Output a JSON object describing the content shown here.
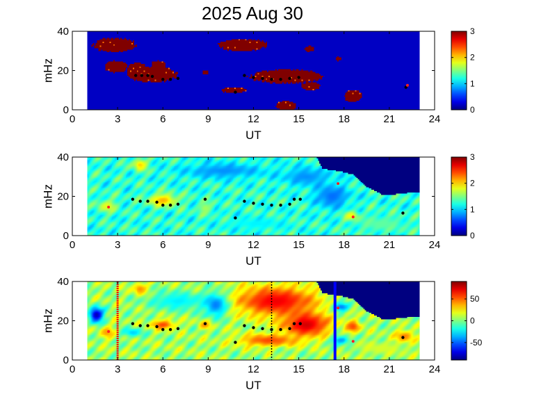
{
  "figure": {
    "title": "2025 Aug 30"
  },
  "chart_data": [
    {
      "type": "heatmap",
      "panel": "top",
      "xlabel": "UT",
      "ylabel": "mHz",
      "xlim": [
        0,
        24
      ],
      "ylim": [
        0,
        40
      ],
      "xticks": [
        "0",
        "3",
        "6",
        "9",
        "12",
        "15",
        "18",
        "21",
        "24"
      ],
      "yticks": [
        "0",
        "20",
        "40"
      ],
      "data_x_range": [
        1,
        23
      ],
      "colorbar": {
        "range": [
          0,
          3
        ],
        "ticks": [
          "0",
          "1",
          "2",
          "3"
        ]
      },
      "background_level": 0.2,
      "blobs": [
        {
          "x": 2.8,
          "y": 33,
          "rx": 1.4,
          "ry": 3.5,
          "v": 3
        },
        {
          "x": 2.2,
          "y": 34,
          "rx": 0.5,
          "ry": 2.5,
          "v": 3
        },
        {
          "x": 2.9,
          "y": 22,
          "rx": 0.8,
          "ry": 3,
          "v": 3
        },
        {
          "x": 5.3,
          "y": 18,
          "rx": 1.6,
          "ry": 4,
          "v": 3
        },
        {
          "x": 4.3,
          "y": 20,
          "rx": 0.7,
          "ry": 4,
          "v": 3
        },
        {
          "x": 5.7,
          "y": 23,
          "rx": 0.5,
          "ry": 2,
          "v": 3
        },
        {
          "x": 11.3,
          "y": 33,
          "rx": 1.6,
          "ry": 3,
          "v": 3
        },
        {
          "x": 14.2,
          "y": 17,
          "rx": 2.4,
          "ry": 3.5,
          "v": 3
        },
        {
          "x": 10.7,
          "y": 10,
          "rx": 0.8,
          "ry": 1.5,
          "v": 3
        },
        {
          "x": 14.2,
          "y": 2,
          "rx": 0.7,
          "ry": 2.5,
          "v": 3
        },
        {
          "x": 18.6,
          "y": 7,
          "rx": 0.6,
          "ry": 3,
          "v": 3
        },
        {
          "x": 15.8,
          "y": 12,
          "rx": 0.6,
          "ry": 2,
          "v": 3
        },
        {
          "x": 15.7,
          "y": 31,
          "rx": 0.3,
          "ry": 1.5,
          "v": 3
        },
        {
          "x": 17.6,
          "y": 26,
          "rx": 0.2,
          "ry": 1,
          "v": 3
        },
        {
          "x": 8.8,
          "y": 19,
          "rx": 0.2,
          "ry": 1.2,
          "v": 3
        }
      ],
      "markers_black": [
        [
          4.2,
          17.5
        ],
        [
          4.6,
          17.5
        ],
        [
          5.0,
          17.5
        ],
        [
          5.3,
          17.0
        ],
        [
          6.0,
          15.5
        ],
        [
          6.5,
          15.5
        ],
        [
          7.0,
          16.0
        ],
        [
          11.4,
          17.5
        ],
        [
          12.0,
          16.5
        ],
        [
          12.6,
          16.0
        ],
        [
          13.2,
          15.5
        ],
        [
          13.8,
          15.5
        ],
        [
          14.4,
          16.0
        ],
        [
          15.0,
          16.5
        ],
        [
          10.8,
          9.0
        ],
        [
          22.1,
          11.5
        ]
      ],
      "markers_red": [
        [
          22.2,
          12.5
        ]
      ]
    },
    {
      "type": "heatmap",
      "panel": "middle",
      "xlabel": "UT",
      "ylabel": "mHz",
      "xlim": [
        0,
        24
      ],
      "ylim": [
        0,
        40
      ],
      "xticks": [
        "0",
        "3",
        "6",
        "9",
        "12",
        "15",
        "18",
        "21",
        "24"
      ],
      "yticks": [
        "0",
        "20",
        "40"
      ],
      "data_x_range": [
        1,
        23
      ],
      "colorbar": {
        "range": [
          0,
          3
        ],
        "ticks": [
          "0",
          "1",
          "2",
          "3"
        ]
      },
      "background_level": 1.25,
      "blobs": [
        {
          "x": 6.0,
          "y": 18,
          "rx": 1.2,
          "ry": 4,
          "v": 2.1
        },
        {
          "x": 4.5,
          "y": 36,
          "rx": 0.6,
          "ry": 4,
          "v": 2.0
        },
        {
          "x": 2.3,
          "y": 15,
          "rx": 0.8,
          "ry": 4,
          "v": 1.8
        },
        {
          "x": 10.0,
          "y": 33,
          "rx": 3.5,
          "ry": 5,
          "v": 0.8
        },
        {
          "x": 15.5,
          "y": 30,
          "rx": 2.0,
          "ry": 6,
          "v": 0.8
        },
        {
          "x": 17.2,
          "y": 20,
          "rx": 1.5,
          "ry": 8,
          "v": 0.7
        },
        {
          "x": 12.2,
          "y": 6,
          "rx": 2.5,
          "ry": 4,
          "v": 1.1
        },
        {
          "x": 8.8,
          "y": 14,
          "rx": 0.6,
          "ry": 4,
          "v": 1.6
        },
        {
          "x": 18.5,
          "y": 10,
          "rx": 0.6,
          "ry": 3,
          "v": 1.9
        },
        {
          "x": 20.5,
          "y": 6,
          "rx": 2.0,
          "ry": 5,
          "v": 1.4
        }
      ],
      "masked_region": {
        "value": 0,
        "boundary": [
          [
            16.2,
            40
          ],
          [
            16.6,
            34
          ],
          [
            17.5,
            33
          ],
          [
            18.6,
            31
          ],
          [
            19.5,
            25
          ],
          [
            20.5,
            21
          ],
          [
            21.5,
            21
          ],
          [
            22.5,
            22
          ],
          [
            23,
            22
          ],
          [
            23,
            40
          ]
        ]
      },
      "markers_black": [
        [
          4.0,
          18.5
        ],
        [
          4.5,
          17.5
        ],
        [
          5.0,
          17.5
        ],
        [
          5.6,
          17.0
        ],
        [
          6.0,
          15.5
        ],
        [
          6.5,
          15.5
        ],
        [
          7.0,
          16.0
        ],
        [
          8.8,
          18.5
        ],
        [
          11.4,
          17.5
        ],
        [
          12.0,
          16.5
        ],
        [
          12.6,
          16.0
        ],
        [
          13.2,
          15.5
        ],
        [
          13.8,
          15.5
        ],
        [
          14.4,
          16.0
        ],
        [
          14.7,
          18.5
        ],
        [
          15.1,
          18.5
        ],
        [
          10.8,
          9.0
        ],
        [
          21.9,
          11.5
        ]
      ],
      "markers_red": [
        [
          2.4,
          14.5
        ],
        [
          17.6,
          26.5
        ],
        [
          18.6,
          9.5
        ]
      ]
    },
    {
      "type": "heatmap",
      "panel": "bottom",
      "xlabel": "UT",
      "ylabel": "mHz",
      "xlim": [
        0,
        24
      ],
      "ylim": [
        0,
        40
      ],
      "xticks": [
        "0",
        "3",
        "6",
        "9",
        "12",
        "15",
        "18",
        "21",
        "24"
      ],
      "yticks": [
        "0",
        "20",
        "40"
      ],
      "data_x_range": [
        1,
        23
      ],
      "colorbar": {
        "range": [
          -90,
          90
        ],
        "ticks": [
          "50",
          "0",
          "-50"
        ]
      },
      "background_level": 5,
      "blobs": [
        {
          "x": 13.5,
          "y": 30,
          "rx": 3.5,
          "ry": 10,
          "v": 70
        },
        {
          "x": 15.5,
          "y": 18,
          "rx": 2.0,
          "ry": 8,
          "v": 75
        },
        {
          "x": 13.0,
          "y": 10,
          "rx": 2.5,
          "ry": 4,
          "v": 55
        },
        {
          "x": 4.5,
          "y": 36,
          "rx": 0.6,
          "ry": 4,
          "v": 45
        },
        {
          "x": 6.0,
          "y": 18,
          "rx": 1.0,
          "ry": 3,
          "v": 55
        },
        {
          "x": 8.8,
          "y": 18,
          "rx": 0.5,
          "ry": 3,
          "v": 45
        },
        {
          "x": 1.6,
          "y": 23,
          "rx": 0.6,
          "ry": 5,
          "v": -80
        },
        {
          "x": 2.3,
          "y": 14,
          "rx": 0.6,
          "ry": 4,
          "v": 40
        },
        {
          "x": 4.0,
          "y": 14,
          "rx": 0.8,
          "ry": 3,
          "v": -30
        },
        {
          "x": 7.0,
          "y": 30,
          "rx": 2.5,
          "ry": 6,
          "v": -25
        },
        {
          "x": 9.5,
          "y": 28,
          "rx": 1.0,
          "ry": 8,
          "v": -45
        },
        {
          "x": 17.8,
          "y": 27,
          "rx": 0.8,
          "ry": 3,
          "v": -45
        },
        {
          "x": 17.8,
          "y": 10,
          "rx": 0.8,
          "ry": 3,
          "v": -40
        },
        {
          "x": 18.6,
          "y": 17,
          "rx": 0.6,
          "ry": 4,
          "v": 55
        },
        {
          "x": 22.0,
          "y": 12,
          "rx": 0.8,
          "ry": 4,
          "v": 45
        },
        {
          "x": 20.5,
          "y": 6,
          "rx": 2.0,
          "ry": 4,
          "v": 15
        }
      ],
      "masked_region": {
        "value": -90,
        "boundary": [
          [
            16.2,
            40
          ],
          [
            16.6,
            34
          ],
          [
            17.5,
            33
          ],
          [
            18.6,
            31
          ],
          [
            19.5,
            25
          ],
          [
            20.5,
            21
          ],
          [
            21.5,
            21
          ],
          [
            22.5,
            22
          ],
          [
            23,
            22
          ],
          [
            23,
            40
          ]
        ]
      },
      "markers_black": [
        [
          4.0,
          18.5
        ],
        [
          4.5,
          17.5
        ],
        [
          5.0,
          17.5
        ],
        [
          5.6,
          17.0
        ],
        [
          6.0,
          15.5
        ],
        [
          6.5,
          15.5
        ],
        [
          7.0,
          16.0
        ],
        [
          8.8,
          18.5
        ],
        [
          11.4,
          17.5
        ],
        [
          12.0,
          16.5
        ],
        [
          12.6,
          16.0
        ],
        [
          13.2,
          15.5
        ],
        [
          13.8,
          15.5
        ],
        [
          14.4,
          16.0
        ],
        [
          14.7,
          18.5
        ],
        [
          15.1,
          18.5
        ],
        [
          10.8,
          9.0
        ],
        [
          21.9,
          11.5
        ]
      ],
      "markers_red": [
        [
          2.4,
          14.5
        ],
        [
          17.6,
          26.5
        ],
        [
          18.6,
          9.5
        ]
      ],
      "vertical_lines": [
        {
          "x": 3.0,
          "color": "#ff0000",
          "style": "dotted-thick"
        },
        {
          "x": 13.2,
          "color": "#000000",
          "style": "dotted"
        },
        {
          "x": 17.4,
          "color": "#0000ff",
          "style": "solid-thick"
        }
      ]
    }
  ]
}
